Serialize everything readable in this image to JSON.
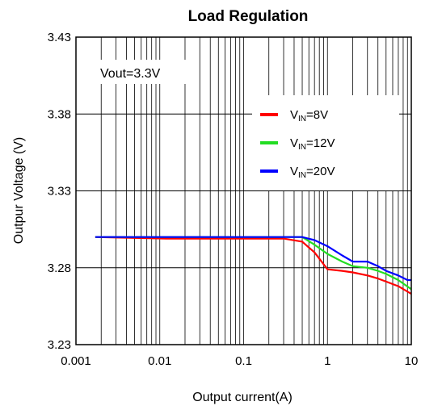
{
  "chart_data": {
    "type": "line",
    "title": "Load Regulation",
    "xlabel": "Output current(A)",
    "ylabel": "Outpur Voltage (V)",
    "x_scale": "log",
    "xlim": [
      0.001,
      10
    ],
    "ylim": [
      3.23,
      3.43
    ],
    "x_ticks": [
      "0.001",
      "0.01",
      "0.1",
      "1",
      "10"
    ],
    "y_ticks": [
      "3.23",
      "3.28",
      "3.33",
      "3.38",
      "3.43"
    ],
    "grid": true,
    "annotation": "Vout=3.3V",
    "legend_position": "right",
    "series": [
      {
        "name_main": "V",
        "name_sub": "IN",
        "name_tail": "=8V",
        "color": "#ff0000",
        "points": [
          [
            0.0017,
            3.3
          ],
          [
            0.012,
            3.299
          ],
          [
            0.1,
            3.299
          ],
          [
            0.3,
            3.299
          ],
          [
            0.5,
            3.297
          ],
          [
            0.7,
            3.29
          ],
          [
            1.0,
            3.279
          ],
          [
            1.5,
            3.278
          ],
          [
            2.0,
            3.277
          ],
          [
            3.0,
            3.275
          ],
          [
            4.0,
            3.273
          ],
          [
            5.0,
            3.271
          ],
          [
            7.0,
            3.268
          ],
          [
            10.0,
            3.263
          ]
        ]
      },
      {
        "name_main": "V",
        "name_sub": "IN",
        "name_tail": "=12V",
        "color": "#22dd22",
        "points": [
          [
            0.0017,
            3.3
          ],
          [
            0.012,
            3.3
          ],
          [
            0.1,
            3.3
          ],
          [
            0.3,
            3.3
          ],
          [
            0.5,
            3.3
          ],
          [
            0.7,
            3.295
          ],
          [
            1.0,
            3.289
          ],
          [
            1.5,
            3.284
          ],
          [
            2.0,
            3.281
          ],
          [
            3.0,
            3.28
          ],
          [
            4.0,
            3.278
          ],
          [
            5.0,
            3.276
          ],
          [
            7.0,
            3.272
          ],
          [
            10.0,
            3.266
          ]
        ]
      },
      {
        "name_main": "V",
        "name_sub": "IN",
        "name_tail": "=20V",
        "color": "#0000ff",
        "points": [
          [
            0.0017,
            3.3
          ],
          [
            0.012,
            3.3
          ],
          [
            0.1,
            3.3
          ],
          [
            0.3,
            3.3
          ],
          [
            0.5,
            3.3
          ],
          [
            0.7,
            3.298
          ],
          [
            1.0,
            3.294
          ],
          [
            1.5,
            3.288
          ],
          [
            2.0,
            3.284
          ],
          [
            3.0,
            3.284
          ],
          [
            4.0,
            3.281
          ],
          [
            5.0,
            3.278
          ],
          [
            7.0,
            3.275
          ],
          [
            9.0,
            3.272
          ],
          [
            10.0,
            3.272
          ]
        ]
      }
    ]
  }
}
